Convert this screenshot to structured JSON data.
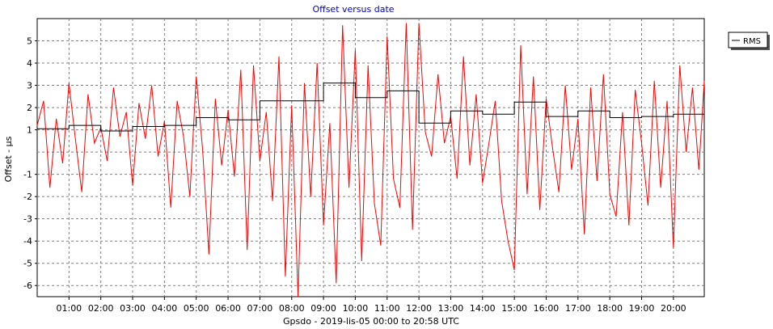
{
  "chart_data": {
    "type": "line",
    "title": "Offset versus date",
    "title_color": "#0000cc",
    "ylabel": "Offset - µs",
    "xlabel": "Gpsdo  -  2019-lis-05 00:00 to 20:58 UTC",
    "xlim": [
      0,
      20.97
    ],
    "ylim": [
      -6.5,
      6
    ],
    "grid": true,
    "legend_position": "top-right",
    "y_ticks": [
      5,
      4,
      3,
      2,
      1,
      -1,
      -2,
      -3,
      -4,
      -5,
      -6
    ],
    "y_tick_labels": [
      "5",
      "4",
      "3",
      "2",
      "1",
      "-1",
      "-2",
      "-3",
      "-4",
      "-5",
      "-6"
    ],
    "x_ticks": [
      1,
      2,
      3,
      4,
      5,
      6,
      7,
      8,
      9,
      10,
      11,
      12,
      13,
      14,
      15,
      16,
      17,
      18,
      19,
      20
    ],
    "x_tick_labels": [
      "01:00",
      "02:00",
      "03:00",
      "04:00",
      "05:00",
      "06:00",
      "07:00",
      "08:00",
      "09:00",
      "10:00",
      "11:00",
      "12:00",
      "13:00",
      "14:00",
      "15:00",
      "16:00",
      "17:00",
      "18:00",
      "19:00",
      "20:00"
    ],
    "series": [
      {
        "name": "Offset",
        "color": "#ff0000",
        "x": [
          0,
          0.2,
          0.4,
          0.6,
          0.8,
          1.0,
          1.2,
          1.4,
          1.6,
          1.8,
          2.0,
          2.2,
          2.4,
          2.6,
          2.8,
          3.0,
          3.2,
          3.4,
          3.6,
          3.8,
          4.0,
          4.2,
          4.4,
          4.6,
          4.8,
          5.0,
          5.2,
          5.4,
          5.6,
          5.8,
          6.0,
          6.2,
          6.4,
          6.6,
          6.8,
          7.0,
          7.2,
          7.4,
          7.6,
          7.8,
          8.0,
          8.2,
          8.4,
          8.6,
          8.8,
          9.0,
          9.2,
          9.4,
          9.6,
          9.8,
          10.0,
          10.2,
          10.4,
          10.6,
          10.8,
          11.0,
          11.2,
          11.4,
          11.6,
          11.8,
          12.0,
          12.2,
          12.4,
          12.6,
          12.8,
          13.0,
          13.2,
          13.4,
          13.6,
          13.8,
          14.0,
          14.2,
          14.4,
          14.6,
          14.8,
          15.0,
          15.2,
          15.4,
          15.6,
          15.8,
          16.0,
          16.2,
          16.4,
          16.6,
          16.8,
          17.0,
          17.2,
          17.4,
          17.6,
          17.8,
          18.0,
          18.2,
          18.4,
          18.6,
          18.8,
          19.0,
          19.2,
          19.4,
          19.6,
          19.8,
          20.0,
          20.2,
          20.4,
          20.6,
          20.8,
          20.97
        ],
        "y": [
          1.2,
          2.3,
          -1.6,
          1.5,
          -0.5,
          3.1,
          0.6,
          -1.8,
          2.6,
          0.4,
          1.1,
          -0.4,
          2.9,
          0.7,
          1.8,
          -1.5,
          2.2,
          0.6,
          3.0,
          -0.2,
          1.4,
          -2.5,
          2.3,
          0.7,
          -2.0,
          3.4,
          0.1,
          -4.6,
          2.4,
          -0.6,
          1.9,
          -1.1,
          3.7,
          -4.4,
          3.9,
          -0.4,
          1.8,
          -2.2,
          4.3,
          -5.6,
          2.1,
          -6.5,
          3.1,
          -2.0,
          4.0,
          -3.3,
          1.3,
          -5.9,
          5.7,
          -1.6,
          4.6,
          -4.9,
          3.9,
          -2.3,
          -4.2,
          5.2,
          -1.2,
          -2.5,
          5.8,
          -3.5,
          5.8,
          0.9,
          -0.2,
          3.5,
          0.4,
          1.6,
          -1.2,
          4.3,
          -0.6,
          2.6,
          -1.4,
          0.4,
          2.3,
          -2.2,
          -4.0,
          -5.3,
          4.8,
          -1.9,
          3.4,
          -2.6,
          2.4,
          0.2,
          -1.8,
          3.0,
          -0.8,
          1.5,
          -3.7,
          2.9,
          -1.3,
          3.5,
          -1.9,
          -2.9,
          1.8,
          -3.3,
          2.8,
          0.4,
          -2.4,
          3.2,
          -1.6,
          2.3,
          -4.3,
          3.9,
          0.0,
          2.9,
          -0.8,
          3.2
        ]
      },
      {
        "name": "RMS",
        "color": "#000000",
        "x": [
          0,
          1,
          1,
          2,
          2,
          3,
          3,
          4,
          4,
          5,
          5,
          6,
          6,
          7,
          7,
          8,
          8,
          9,
          9,
          10,
          10,
          11,
          11,
          12,
          12,
          13,
          13,
          14,
          14,
          15,
          15,
          16,
          16,
          17,
          17,
          18,
          18,
          19,
          19,
          20,
          20,
          20.97
        ],
        "y": [
          1.05,
          1.05,
          1.2,
          1.2,
          0.95,
          0.95,
          1.15,
          1.15,
          1.2,
          1.2,
          1.55,
          1.55,
          1.45,
          1.45,
          2.3,
          2.3,
          2.3,
          2.3,
          3.1,
          3.1,
          2.45,
          2.45,
          2.75,
          2.75,
          1.3,
          1.3,
          1.85,
          1.85,
          1.7,
          1.7,
          2.25,
          2.25,
          1.6,
          1.6,
          1.85,
          1.85,
          1.55,
          1.55,
          1.6,
          1.6,
          1.7,
          1.7
        ]
      }
    ],
    "legend_entries": [
      "RMS"
    ]
  }
}
